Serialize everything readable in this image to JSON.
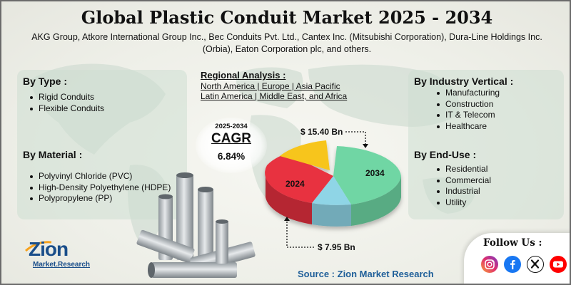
{
  "title": "Global Plastic Conduit Market 2025 - 2034",
  "companies": "AKG Group, Atkore International Group Inc., Bec Conduits Pvt. Ltd., Cantex Inc. (Mitsubishi Corporation), Dura-Line Holdings Inc. (Orbia), Eaton Corporation plc, and others.",
  "by_type": {
    "heading": "By Type :",
    "items": [
      "Rigid Conduits",
      "Flexible Conduits"
    ]
  },
  "by_material": {
    "heading": "By Material :",
    "items": [
      "Polyvinyl Chloride (PVC)",
      "High-Density Polyethylene (HDPE)",
      "Polypropylene (PP)"
    ]
  },
  "regional": {
    "heading": "Regional Analysis :",
    "line1": "North America | Europe | Asia Pacific",
    "line2": "Latin America | Middle East, and Africa"
  },
  "cagr": {
    "years": "2025-2034",
    "label": "CAGR",
    "value": "6.84%"
  },
  "market_values": {
    "value_2034": "$ 15.40 Bn",
    "value_2024": "$ 7.95 Bn",
    "label_2024": "2024",
    "label_2034": "2034"
  },
  "pie_colors": {
    "c2034": "#6fd6a4",
    "c2024": "#e8323f",
    "cyellow": "#f7c51d",
    "cblue": "#8fd5e6"
  },
  "by_industry": {
    "heading": "By Industry Vertical :",
    "items": [
      "Manufacturing",
      "Construction",
      "IT & Telecom",
      "Healthcare"
    ]
  },
  "by_enduse": {
    "heading": "By End-Use :",
    "items": [
      "Residential",
      "Commercial",
      "Industrial",
      "Utility"
    ]
  },
  "source": "Source : Zion Market Research",
  "follow": {
    "title": "Follow Us :",
    "icons": [
      "instagram-icon",
      "facebook-icon",
      "x-icon",
      "youtube-icon"
    ]
  },
  "logo": {
    "main": "Zion",
    "sub": "Market.Research"
  }
}
